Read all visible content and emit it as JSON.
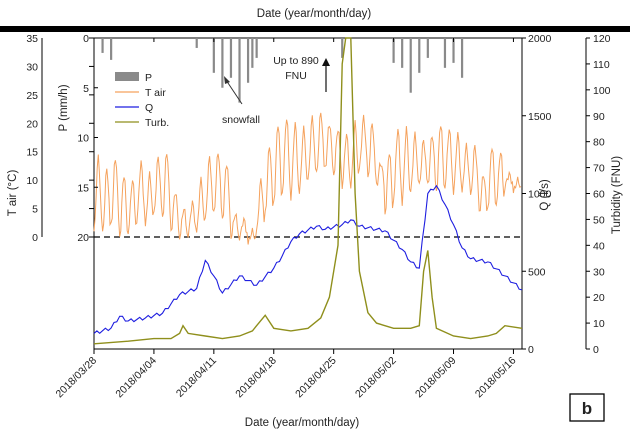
{
  "chart_data": {
    "type": "line",
    "top_axis_label": "Date (year/month/day)",
    "xlabel": "Date (year/month/day)",
    "x_ticks": [
      "2018/03/28",
      "2018/04/04",
      "2018/04/11",
      "2018/04/18",
      "2018/04/25",
      "2018/05/02",
      "2018/05/09",
      "2018/05/16"
    ],
    "xlim": [
      "2018/03/28",
      "2018/05/17"
    ],
    "axes": {
      "t_air": {
        "label": "T air (°C)",
        "ticks": [
          0,
          5,
          10,
          15,
          20,
          25,
          30,
          35
        ],
        "range": [
          0,
          35
        ]
      },
      "p": {
        "label": "P (mm/h)",
        "ticks": [
          0,
          5,
          10,
          15,
          20
        ],
        "range": [
          0,
          20
        ],
        "inverted": true
      },
      "q": {
        "label": "Q (l/s)",
        "ticks": [
          0,
          500,
          1000,
          1500,
          2000
        ],
        "range": [
          0,
          2000
        ]
      },
      "turb": {
        "label": "Turbidity (FNU)",
        "ticks": [
          0,
          10,
          20,
          30,
          40,
          50,
          60,
          70,
          80,
          90,
          100,
          110,
          120
        ],
        "range": [
          0,
          120
        ]
      }
    },
    "zero_line": {
      "axis": "t_air",
      "value": 0,
      "style": "dashed"
    },
    "legend": {
      "placement": "top-left",
      "entries": [
        "P",
        "T air",
        "Q",
        "Turb."
      ]
    },
    "annotations": {
      "snowfall": "snowfall",
      "peak_note_1": "Up to 890",
      "peak_note_2": "FNU",
      "panel": "b"
    },
    "series": [
      {
        "name": "P",
        "axis": "p",
        "color": "#8a8a8a",
        "events": [
          {
            "x": "2018/03/29",
            "y": 1.5
          },
          {
            "x": "2018/03/30",
            "y": 2.2
          },
          {
            "x": "2018/04/09",
            "y": 1.0
          },
          {
            "x": "2018/04/11",
            "y": 3.5
          },
          {
            "x": "2018/04/12",
            "y": 5.0
          },
          {
            "x": "2018/04/13",
            "y": 4.0
          },
          {
            "x": "2018/04/14",
            "y": 6.5
          },
          {
            "x": "2018/04/15",
            "y": 4.5
          },
          {
            "x": "2018/04/15.5",
            "y": 3.0
          },
          {
            "x": "2018/04/16",
            "y": 2.0
          },
          {
            "x": "2018/04/26",
            "y": 2.0
          },
          {
            "x": "2018/05/02",
            "y": 2.5
          },
          {
            "x": "2018/05/03",
            "y": 3.0
          },
          {
            "x": "2018/05/04",
            "y": 5.5
          },
          {
            "x": "2018/05/05",
            "y": 3.5
          },
          {
            "x": "2018/05/06",
            "y": 2.0
          },
          {
            "x": "2018/05/08",
            "y": 3.0
          },
          {
            "x": "2018/05/09",
            "y": 2.5
          },
          {
            "x": "2018/05/10",
            "y": 4.0
          }
        ]
      },
      {
        "name": "T air",
        "axis": "t_air",
        "color": "#f5a25d",
        "daily": [
          [
            1,
            14
          ],
          [
            0.5,
            12
          ],
          [
            2,
            14
          ],
          [
            0,
            11
          ],
          [
            1,
            10
          ],
          [
            3,
            13
          ],
          [
            2,
            11
          ],
          [
            4,
            14
          ],
          [
            3,
            15
          ],
          [
            1,
            8
          ],
          [
            0,
            5
          ],
          [
            0.5,
            6
          ],
          [
            1,
            10
          ],
          [
            3,
            14
          ],
          [
            4,
            15
          ],
          [
            3,
            13
          ],
          [
            0,
            4
          ],
          [
            0,
            3
          ],
          [
            -1,
            1
          ],
          [
            1,
            10
          ],
          [
            4,
            16
          ],
          [
            6,
            20
          ],
          [
            8,
            21
          ],
          [
            7,
            20
          ],
          [
            8,
            19
          ],
          [
            10,
            21
          ],
          [
            11,
            22
          ],
          [
            12,
            20
          ],
          [
            11,
            19
          ],
          [
            9,
            18
          ],
          [
            9,
            20
          ],
          [
            12,
            21
          ],
          [
            10,
            20
          ],
          [
            9,
            13
          ],
          [
            4,
            15
          ],
          [
            7,
            19
          ],
          [
            6,
            19
          ],
          [
            8,
            18
          ],
          [
            9,
            17
          ],
          [
            9,
            18
          ],
          [
            8,
            20
          ],
          [
            9,
            19
          ],
          [
            8,
            18
          ],
          [
            8,
            16
          ],
          [
            7,
            16
          ],
          [
            4,
            11
          ],
          [
            5,
            16
          ],
          [
            6,
            15
          ],
          [
            9,
            11
          ],
          [
            8,
            10
          ]
        ]
      },
      {
        "name": "Q",
        "axis": "q",
        "color": "#1f1fe0",
        "points": [
          {
            "x": 0,
            "y": 100
          },
          {
            "x": 2,
            "y": 135
          },
          {
            "x": 3,
            "y": 210
          },
          {
            "x": 4,
            "y": 180
          },
          {
            "x": 6,
            "y": 200
          },
          {
            "x": 8,
            "y": 230
          },
          {
            "x": 10,
            "y": 350
          },
          {
            "x": 12,
            "y": 390
          },
          {
            "x": 13,
            "y": 570
          },
          {
            "x": 14,
            "y": 470
          },
          {
            "x": 15,
            "y": 360
          },
          {
            "x": 17,
            "y": 470
          },
          {
            "x": 19,
            "y": 410
          },
          {
            "x": 21,
            "y": 520
          },
          {
            "x": 22,
            "y": 600
          },
          {
            "x": 23,
            "y": 690
          },
          {
            "x": 24,
            "y": 740
          },
          {
            "x": 26,
            "y": 790
          },
          {
            "x": 27,
            "y": 770
          },
          {
            "x": 29,
            "y": 800
          },
          {
            "x": 30,
            "y": 830
          },
          {
            "x": 31,
            "y": 790
          },
          {
            "x": 33,
            "y": 770
          },
          {
            "x": 34,
            "y": 760
          },
          {
            "x": 35,
            "y": 700
          },
          {
            "x": 36,
            "y": 640
          },
          {
            "x": 37,
            "y": 560
          },
          {
            "x": 38,
            "y": 520
          },
          {
            "x": 39,
            "y": 1000
          },
          {
            "x": 40,
            "y": 1050
          },
          {
            "x": 41,
            "y": 930
          },
          {
            "x": 42,
            "y": 800
          },
          {
            "x": 43,
            "y": 650
          },
          {
            "x": 44,
            "y": 580
          },
          {
            "x": 46,
            "y": 560
          },
          {
            "x": 48,
            "y": 470
          },
          {
            "x": 50,
            "y": 380
          }
        ]
      },
      {
        "name": "Turb.",
        "axis": "turb",
        "color": "#8f8f1c",
        "points": [
          {
            "x": 0,
            "y": 2
          },
          {
            "x": 4,
            "y": 3
          },
          {
            "x": 7,
            "y": 4
          },
          {
            "x": 9,
            "y": 4
          },
          {
            "x": 10,
            "y": 6
          },
          {
            "x": 10.4,
            "y": 9
          },
          {
            "x": 11,
            "y": 6
          },
          {
            "x": 13,
            "y": 5
          },
          {
            "x": 15,
            "y": 4
          },
          {
            "x": 17,
            "y": 5
          },
          {
            "x": 18.5,
            "y": 7
          },
          {
            "x": 19,
            "y": 9
          },
          {
            "x": 20,
            "y": 13
          },
          {
            "x": 21,
            "y": 8
          },
          {
            "x": 23,
            "y": 7
          },
          {
            "x": 25,
            "y": 8
          },
          {
            "x": 26.5,
            "y": 12
          },
          {
            "x": 27.5,
            "y": 20
          },
          {
            "x": 28.5,
            "y": 40
          },
          {
            "x": 29,
            "y": 110
          },
          {
            "x": 29.4,
            "y": 120
          },
          {
            "x": 30,
            "y": 120
          },
          {
            "x": 30.5,
            "y": 60
          },
          {
            "x": 31,
            "y": 30
          },
          {
            "x": 32,
            "y": 14
          },
          {
            "x": 33,
            "y": 10
          },
          {
            "x": 35,
            "y": 8
          },
          {
            "x": 37,
            "y": 8
          },
          {
            "x": 38,
            "y": 9
          },
          {
            "x": 38.5,
            "y": 30
          },
          {
            "x": 39,
            "y": 38
          },
          {
            "x": 39.5,
            "y": 20
          },
          {
            "x": 40,
            "y": 8
          },
          {
            "x": 42,
            "y": 5
          },
          {
            "x": 44,
            "y": 4
          },
          {
            "x": 46,
            "y": 5
          },
          {
            "x": 47,
            "y": 6
          },
          {
            "x": 48,
            "y": 9
          },
          {
            "x": 50,
            "y": 8
          }
        ]
      }
    ]
  }
}
